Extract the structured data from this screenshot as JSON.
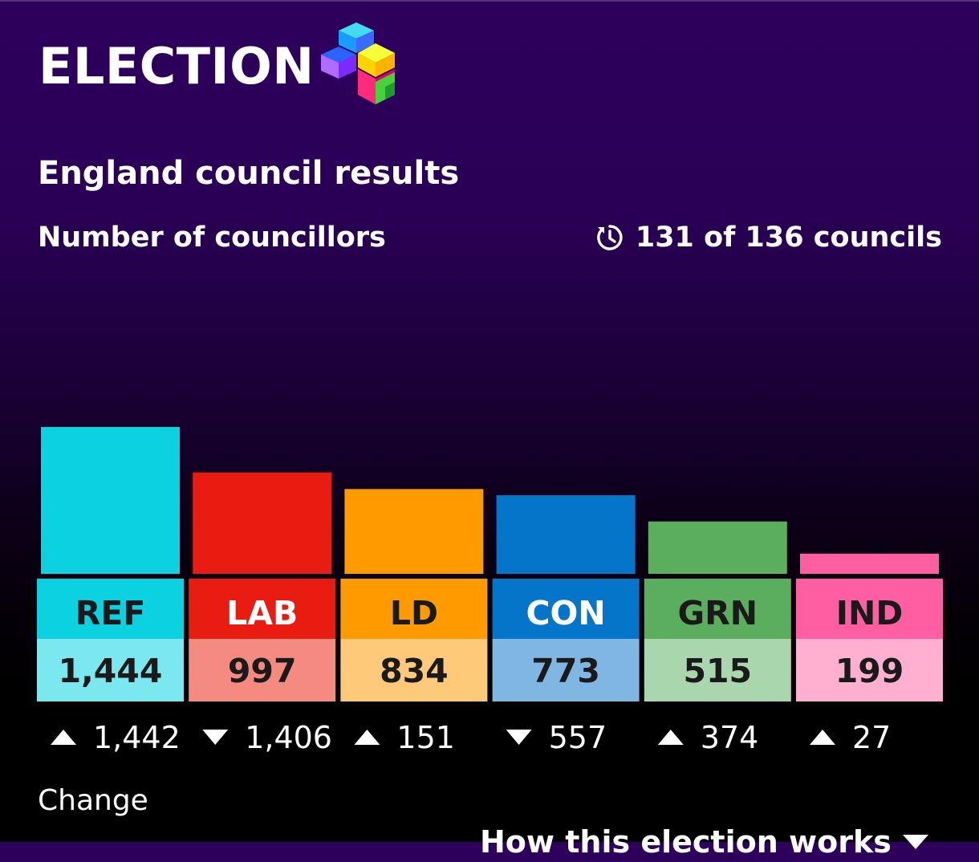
{
  "header": {
    "brand_word": "ELECTION",
    "logo_icon": "election-cubes-logo-icon"
  },
  "title": "England council results",
  "subtitle": "Number of councillors",
  "progress": {
    "icon": "clock-progress-icon",
    "text": "131 of 136 councils"
  },
  "change_label": "Change",
  "how_link": {
    "label": "How this election works",
    "icon": "triangle-down-icon"
  },
  "chart_data": {
    "type": "bar",
    "categories": [
      "REF",
      "LAB",
      "LD",
      "CON",
      "GRN",
      "IND"
    ],
    "values": [
      1444,
      997,
      834,
      773,
      515,
      199
    ],
    "value_labels": [
      "1,444",
      "997",
      "834",
      "773",
      "515",
      "199"
    ],
    "change": [
      1442,
      -1406,
      151,
      -557,
      374,
      27
    ],
    "change_labels": [
      "1,442",
      "1,406",
      "151",
      "557",
      "374",
      "27"
    ],
    "colors": {
      "bar": [
        "#0cd1e0",
        "#e81c11",
        "#ff9b00",
        "#0575c9",
        "#5bae5e",
        "#ff5fa2"
      ],
      "label_bg": [
        "#0cd1e0",
        "#e81c11",
        "#ff9b00",
        "#0575c9",
        "#5bae5e",
        "#ff5fa2"
      ],
      "label_text": [
        "#1a1a1a",
        "#ffffff",
        "#1a1a1a",
        "#ffffff",
        "#1a1a1a",
        "#1a1a1a"
      ],
      "value_bg": [
        "#7be8f0",
        "#f48a80",
        "#ffc97a",
        "#7fb6e2",
        "#aad6ad",
        "#ffafd0"
      ]
    },
    "ylim": [
      0,
      1444
    ]
  }
}
